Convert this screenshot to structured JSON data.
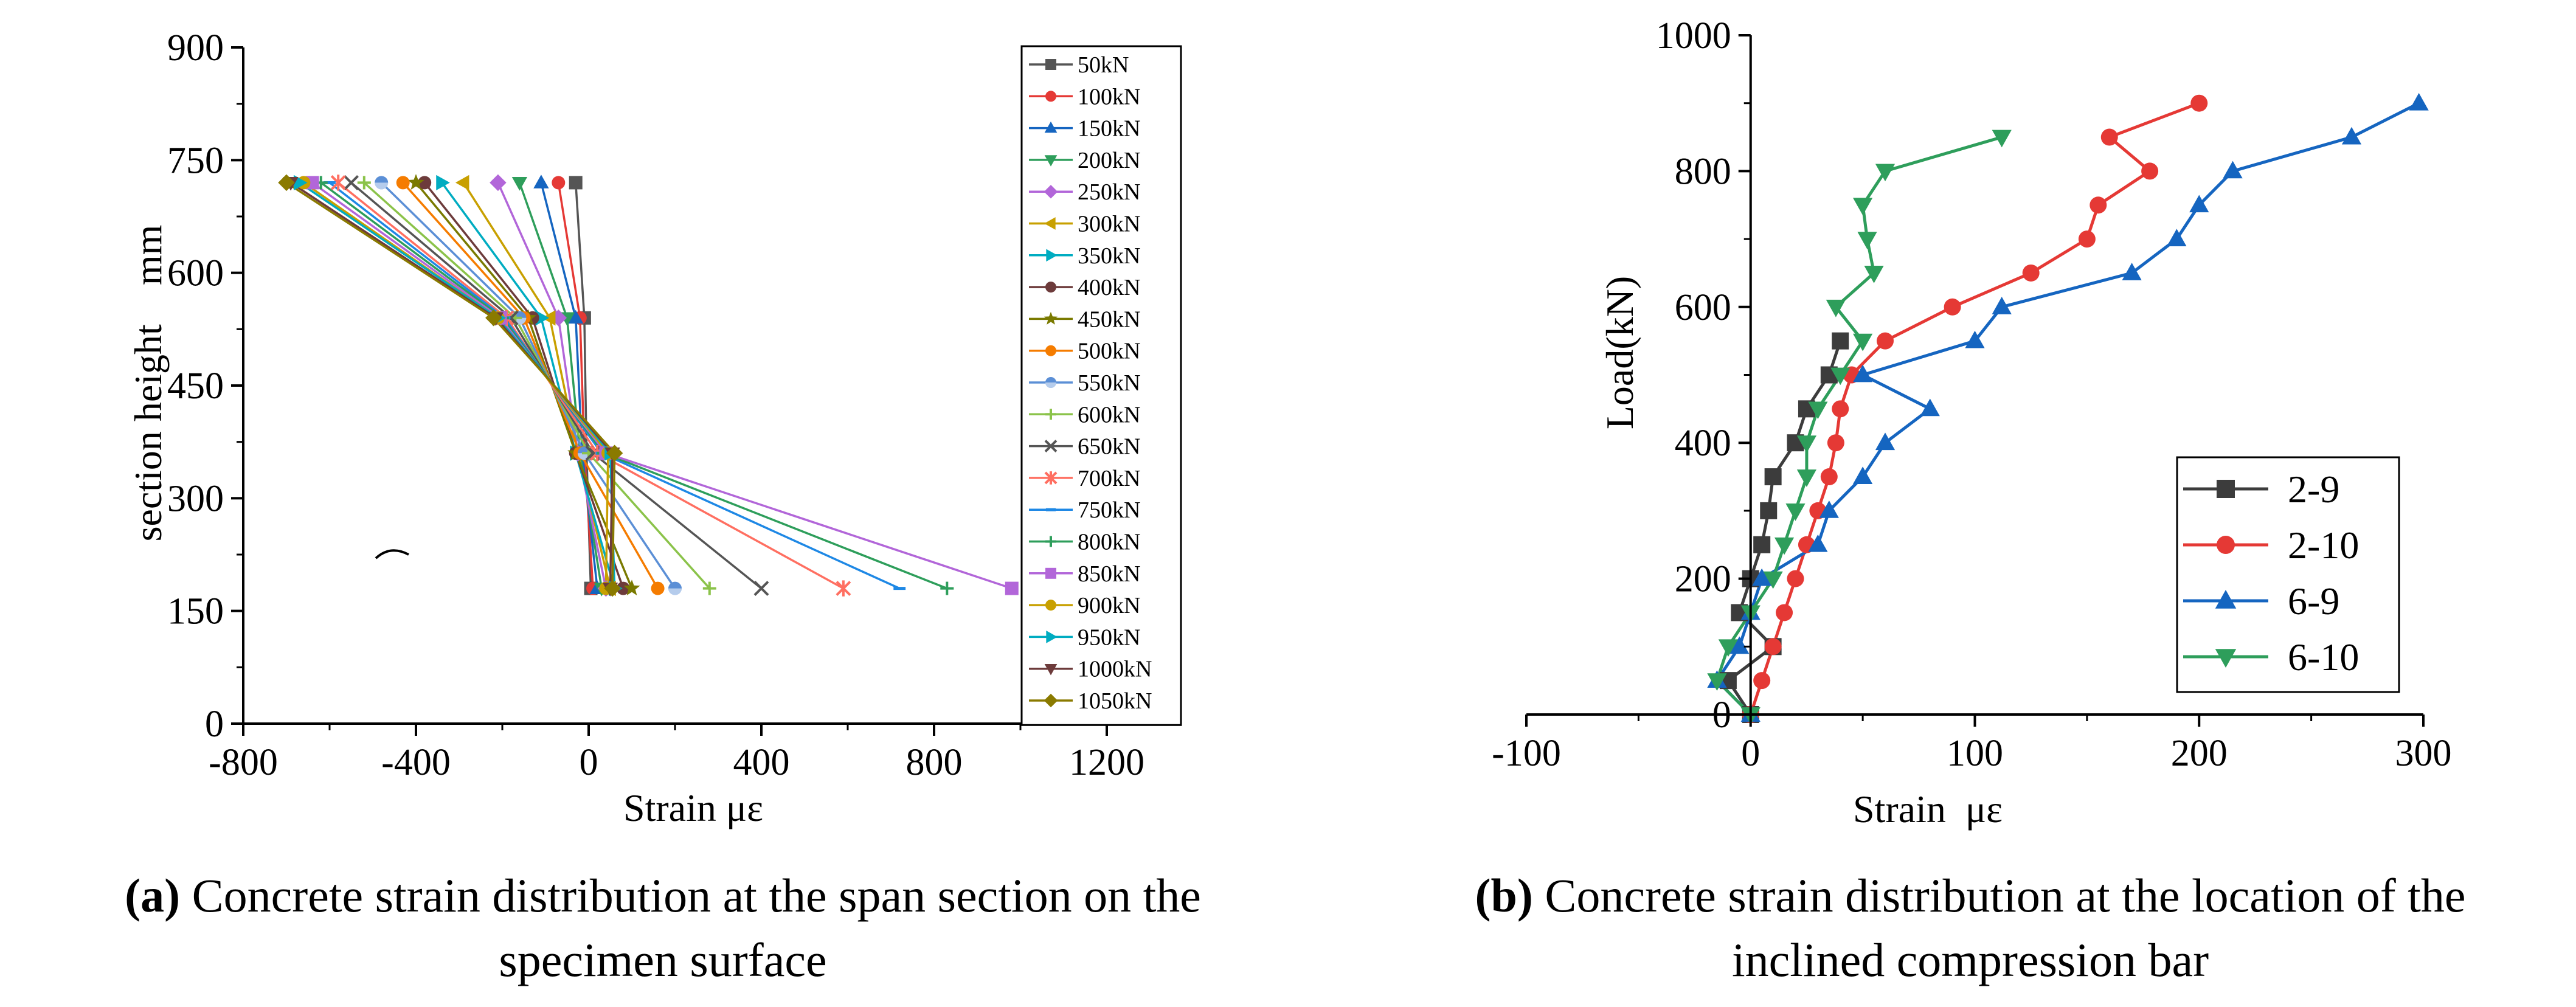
{
  "chart_data": [
    {
      "type": "line",
      "panel": "a",
      "xlabel": "Strain με",
      "ylabel": "section height    mm",
      "xlim": [
        -800,
        1200
      ],
      "ylim": [
        0,
        900
      ],
      "xticks": [
        -800,
        -400,
        0,
        400,
        800,
        1200
      ],
      "yticks": [
        0,
        150,
        300,
        450,
        600,
        750,
        900
      ],
      "grid": false,
      "legend_position": "right",
      "y_levels": [
        180,
        360,
        540,
        720
      ],
      "series": [
        {
          "name": "50kN",
          "color": "#555555",
          "marker": "square",
          "x": [
            5,
            -5,
            -10,
            -30
          ]
        },
        {
          "name": "100kN",
          "color": "#e53935",
          "marker": "circle",
          "x": [
            10,
            -10,
            -20,
            -70
          ]
        },
        {
          "name": "150kN",
          "color": "#1565c0",
          "marker": "triangle-up",
          "x": [
            20,
            -15,
            -30,
            -110
          ]
        },
        {
          "name": "200kN",
          "color": "#2e9e5b",
          "marker": "triangle-down",
          "x": [
            30,
            -20,
            -50,
            -160
          ]
        },
        {
          "name": "250kN",
          "color": "#b266d9",
          "marker": "diamond",
          "x": [
            40,
            -25,
            -70,
            -210
          ]
        },
        {
          "name": "300kN",
          "color": "#c8a000",
          "marker": "triangle-left",
          "x": [
            50,
            -25,
            -90,
            -290
          ]
        },
        {
          "name": "350kN",
          "color": "#00acc1",
          "marker": "triangle-right",
          "x": [
            60,
            -30,
            -110,
            -340
          ]
        },
        {
          "name": "400kN",
          "color": "#6d3b3b",
          "marker": "circle",
          "x": [
            80,
            -30,
            -130,
            -380
          ]
        },
        {
          "name": "450kN",
          "color": "#7a7a00",
          "marker": "star",
          "x": [
            100,
            -30,
            -140,
            -400
          ]
        },
        {
          "name": "500kN",
          "color": "#f57c00",
          "marker": "circle",
          "x": [
            160,
            -20,
            -150,
            -430
          ]
        },
        {
          "name": "550kN",
          "color": "#5b8fd6",
          "marker": "circle-half",
          "x": [
            200,
            -10,
            -160,
            -480
          ]
        },
        {
          "name": "600kN",
          "color": "#8bc34a",
          "marker": "plus",
          "x": [
            280,
            0,
            -170,
            -520
          ]
        },
        {
          "name": "650kN",
          "color": "#555555",
          "marker": "x",
          "x": [
            400,
            10,
            -180,
            -550
          ]
        },
        {
          "name": "700kN",
          "color": "#ff6f61",
          "marker": "asterisk",
          "x": [
            590,
            20,
            -190,
            -580
          ]
        },
        {
          "name": "750kN",
          "color": "#1e88e5",
          "marker": "line",
          "x": [
            720,
            30,
            -195,
            -600
          ]
        },
        {
          "name": "800kN",
          "color": "#2e9e5b",
          "marker": "plus",
          "x": [
            830,
            35,
            -200,
            -620
          ]
        },
        {
          "name": "850kN",
          "color": "#b266d9",
          "marker": "square",
          "x": [
            980,
            40,
            -205,
            -640
          ]
        },
        {
          "name": "900kN",
          "color": "#c8a000",
          "marker": "circle",
          "x": [
            40,
            45,
            -210,
            -660
          ]
        },
        {
          "name": "950kN",
          "color": "#00acc1",
          "marker": "triangle-right",
          "x": [
            60,
            50,
            -210,
            -670
          ]
        },
        {
          "name": "1000kN",
          "color": "#6d3b3b",
          "marker": "triangle-down",
          "x": [
            50,
            55,
            -215,
            -690
          ]
        },
        {
          "name": "1050kN",
          "color": "#8a7a00",
          "marker": "diamond",
          "x": [
            55,
            60,
            -220,
            -700
          ]
        }
      ]
    },
    {
      "type": "line",
      "panel": "b",
      "xlabel": "Strain  με",
      "ylabel": "Load(kN)",
      "xlim": [
        -100,
        300
      ],
      "ylim": [
        0,
        1000
      ],
      "xticks": [
        -100,
        0,
        100,
        200,
        300
      ],
      "yticks": [
        0,
        200,
        400,
        600,
        800,
        1000
      ],
      "grid": false,
      "legend_position": "bottom-right",
      "series": [
        {
          "name": "2-9",
          "color": "#3c3c3c",
          "marker": "square",
          "points": [
            [
              0,
              0
            ],
            [
              -10,
              50
            ],
            [
              10,
              100
            ],
            [
              -5,
              150
            ],
            [
              0,
              200
            ],
            [
              5,
              250
            ],
            [
              8,
              300
            ],
            [
              10,
              350
            ],
            [
              20,
              400
            ],
            [
              25,
              450
            ],
            [
              35,
              500
            ],
            [
              40,
              550
            ]
          ]
        },
        {
          "name": "2-10",
          "color": "#e53935",
          "marker": "circle",
          "points": [
            [
              0,
              0
            ],
            [
              5,
              50
            ],
            [
              10,
              100
            ],
            [
              15,
              150
            ],
            [
              20,
              200
            ],
            [
              25,
              250
            ],
            [
              30,
              300
            ],
            [
              35,
              350
            ],
            [
              38,
              400
            ],
            [
              40,
              450
            ],
            [
              45,
              500
            ],
            [
              60,
              550
            ],
            [
              90,
              600
            ],
            [
              125,
              650
            ],
            [
              150,
              700
            ],
            [
              155,
              750
            ],
            [
              178,
              800
            ],
            [
              160,
              850
            ],
            [
              200,
              900
            ]
          ]
        },
        {
          "name": "6-9",
          "color": "#1565c0",
          "marker": "triangle-up",
          "points": [
            [
              0,
              0
            ],
            [
              -15,
              50
            ],
            [
              -5,
              100
            ],
            [
              0,
              150
            ],
            [
              5,
              200
            ],
            [
              30,
              250
            ],
            [
              35,
              300
            ],
            [
              50,
              350
            ],
            [
              60,
              400
            ],
            [
              80,
              450
            ],
            [
              50,
              500
            ],
            [
              100,
              550
            ],
            [
              112,
              600
            ],
            [
              170,
              650
            ],
            [
              190,
              700
            ],
            [
              200,
              750
            ],
            [
              215,
              800
            ],
            [
              268,
              850
            ],
            [
              298,
              900
            ]
          ]
        },
        {
          "name": "6-10",
          "color": "#2e9e5b",
          "marker": "triangle-down",
          "points": [
            [
              0,
              0
            ],
            [
              -15,
              50
            ],
            [
              -10,
              100
            ],
            [
              0,
              150
            ],
            [
              10,
              200
            ],
            [
              15,
              250
            ],
            [
              20,
              300
            ],
            [
              25,
              350
            ],
            [
              25,
              400
            ],
            [
              30,
              450
            ],
            [
              40,
              500
            ],
            [
              50,
              550
            ],
            [
              38,
              600
            ],
            [
              55,
              650
            ],
            [
              52,
              700
            ],
            [
              50,
              750
            ],
            [
              60,
              800
            ],
            [
              112,
              850
            ]
          ]
        }
      ]
    }
  ],
  "captions": {
    "a": {
      "label": "(a)",
      "line1": "Concrete strain distribution at the span section on the",
      "line2": "specimen surface"
    },
    "b": {
      "label": "(b)",
      "line1": "Concrete strain distribution at the location of the",
      "line2": "inclined compression bar"
    }
  }
}
